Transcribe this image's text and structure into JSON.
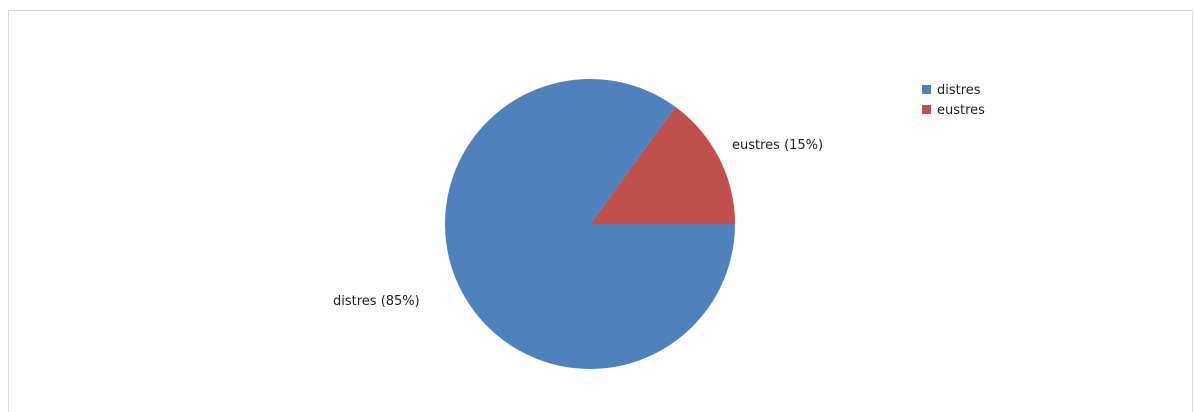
{
  "chart_data": {
    "type": "pie",
    "categories": [
      "distres",
      "eustres"
    ],
    "values": [
      85,
      15
    ],
    "colors": [
      "#4f81bd",
      "#c0504d"
    ],
    "data_labels": [
      "distres (85%)",
      "eustres (15%)"
    ],
    "legend": {
      "placement": "top-right",
      "entries": [
        "distres",
        "eustres"
      ]
    }
  }
}
